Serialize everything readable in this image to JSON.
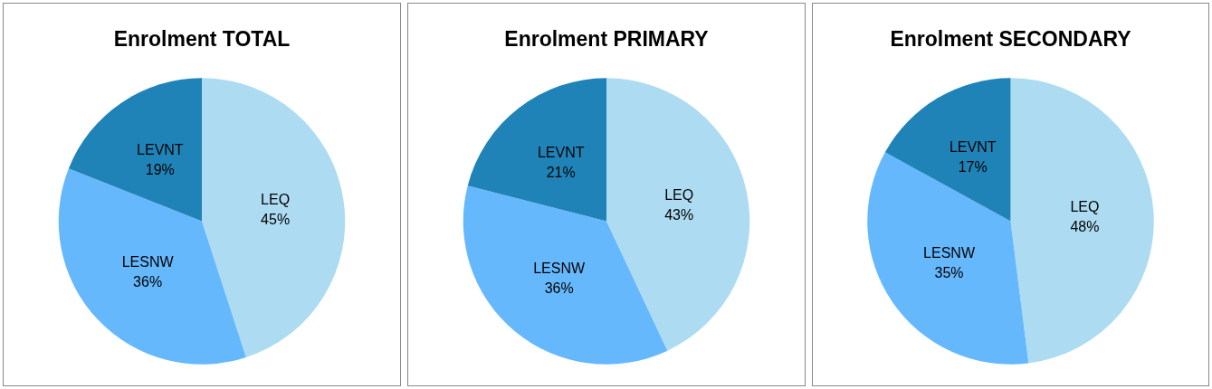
{
  "chart_data": [
    {
      "type": "pie",
      "title": "Enrolment TOTAL",
      "categories": [
        "LEQ",
        "LESNW",
        "LEVNT"
      ],
      "values": [
        45,
        36,
        19
      ],
      "colors": [
        "#addcf2",
        "#66b8fd",
        "#1f83b8"
      ],
      "value_labels": [
        "45%",
        "36%",
        "19%"
      ]
    },
    {
      "type": "pie",
      "title": "Enrolment PRIMARY",
      "categories": [
        "LEQ",
        "LESNW",
        "LEVNT"
      ],
      "values": [
        43,
        36,
        21
      ],
      "colors": [
        "#addcf2",
        "#66b8fd",
        "#1f83b8"
      ],
      "value_labels": [
        "43%",
        "36%",
        "21%"
      ]
    },
    {
      "type": "pie",
      "title": "Enrolment SECONDARY",
      "categories": [
        "LEQ",
        "LESNW",
        "LEVNT"
      ],
      "values": [
        48,
        35,
        17
      ],
      "colors": [
        "#addcf2",
        "#66b8fd",
        "#1f83b8"
      ],
      "value_labels": [
        "48%",
        "35%",
        "17%"
      ]
    }
  ]
}
